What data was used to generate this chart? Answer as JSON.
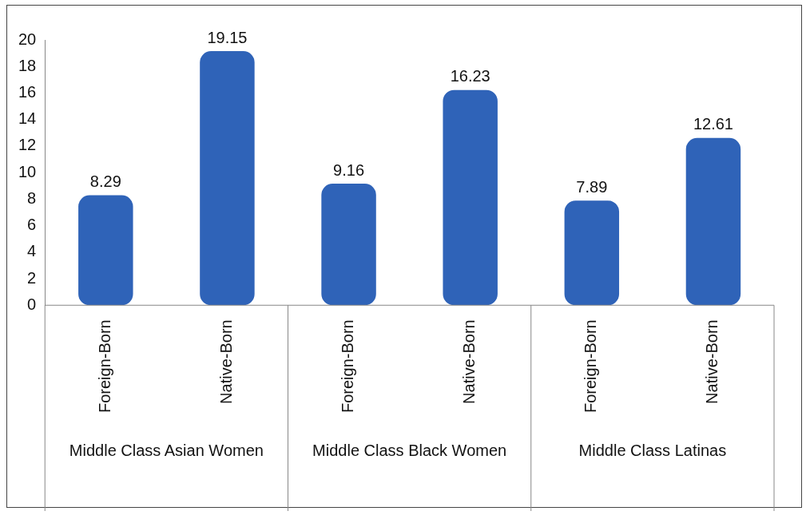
{
  "chart_data": {
    "type": "bar",
    "categories": [
      "Foreign-Born",
      "Native-Born",
      "Foreign-Born",
      "Native-Born",
      "Foreign-Born",
      "Native-Born"
    ],
    "values": [
      8.29,
      19.15,
      9.16,
      16.23,
      7.89,
      12.61
    ],
    "color": "#2f63b8",
    "ylim": [
      0,
      20
    ],
    "yticks": [
      0,
      2,
      4,
      6,
      8,
      10,
      12,
      14,
      16,
      18,
      20
    ],
    "grid": false,
    "legend": false,
    "data_labels": true,
    "annotations": [
      "Middle Class Asian Women",
      "Middle Class Black Women",
      "Middle Class Latinas"
    ]
  }
}
